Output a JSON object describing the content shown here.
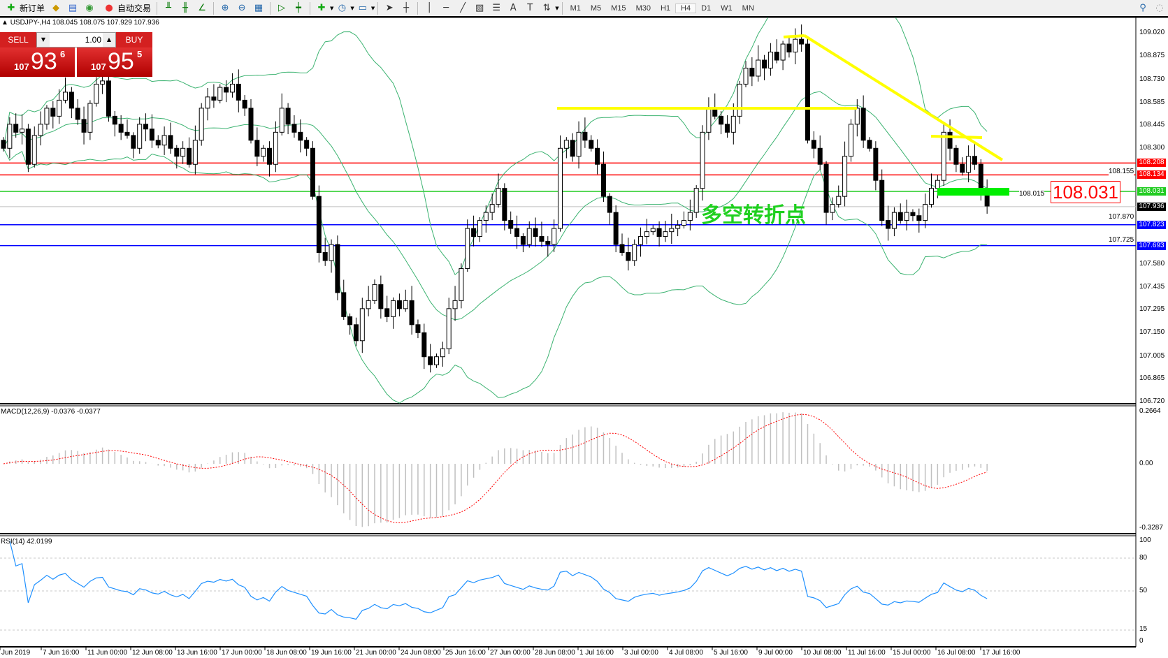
{
  "toolbar": {
    "new_order": "新订单",
    "auto_trading": "自动交易",
    "timeframes": [
      "M1",
      "M5",
      "M15",
      "M30",
      "H1",
      "H4",
      "D1",
      "W1",
      "MN"
    ],
    "active_timeframe": "H4"
  },
  "symbol_header": "USDJPY-,H4  108.045 108.075 107.929 107.936",
  "trade_panel": {
    "sell_label": "SELL",
    "buy_label": "BUY",
    "lot": "1.00",
    "sell_prefix": "107",
    "sell_big": "93",
    "sell_sup": "6",
    "buy_prefix": "107",
    "buy_big": "95",
    "buy_sup": "5",
    "color": "#d42020"
  },
  "price_axis": [
    "109.020",
    "108.875",
    "108.730",
    "108.585",
    "108.445",
    "108.300",
    "108.155",
    "108.015",
    "107.870",
    "107.725",
    "107.580",
    "107.435",
    "107.295",
    "107.150",
    "107.005",
    "106.865",
    "106.720"
  ],
  "hlines": [
    {
      "value": "108.208",
      "color": "#ff0000"
    },
    {
      "value": "108.134",
      "color": "#ff0000"
    },
    {
      "value": "108.031",
      "color": "#22cc22"
    },
    {
      "value": "107.936",
      "color": "#000000"
    },
    {
      "value": "107.823",
      "color": "#0000ff"
    },
    {
      "value": "107.693",
      "color": "#0000ff"
    }
  ],
  "annotation": "多空转折点",
  "big_price_label": "108.031",
  "macd": {
    "header": "MACD(12,26,9) -0.0376 -0.0377",
    "axis": [
      "0.2664",
      "0.00",
      "-0.3287"
    ]
  },
  "rsi": {
    "header": "RSI(14) 42.0199",
    "axis": [
      "100",
      "80",
      "50",
      "15",
      "0"
    ]
  },
  "time_axis": [
    "Jun 2019",
    "7 Jun 16:00",
    "11 Jun 00:00",
    "12 Jun 08:00",
    "13 Jun 16:00",
    "17 Jun 00:00",
    "18 Jun 08:00",
    "19 Jun 16:00",
    "21 Jun 00:00",
    "24 Jun 08:00",
    "25 Jun 16:00",
    "27 Jun 00:00",
    "28 Jun 08:00",
    "1 Jul 16:00",
    "3 Jul 00:00",
    "4 Jul 08:00",
    "5 Jul 16:00",
    "9 Jul 00:00",
    "10 Jul 08:00",
    "11 Jul 16:00",
    "15 Jul 00:00",
    "16 Jul 08:00",
    "17 Jul 16:00"
  ],
  "colors": {
    "bands": "#3cb371",
    "trendlines": "#ffff00",
    "macd_signal": "#ff0000",
    "macd_hist": "#c0c0c0",
    "rsi": "#1e90ff"
  },
  "chart_data": {
    "type": "candlestick",
    "symbol": "USDJPY-",
    "timeframe": "H4",
    "closes": [
      108.3,
      108.45,
      108.4,
      108.42,
      108.2,
      108.38,
      108.45,
      108.55,
      108.5,
      108.6,
      108.65,
      108.55,
      108.48,
      108.4,
      108.58,
      108.7,
      108.72,
      108.5,
      108.45,
      108.4,
      108.38,
      108.3,
      108.45,
      108.42,
      108.35,
      108.32,
      108.38,
      108.3,
      108.25,
      108.3,
      108.2,
      108.35,
      108.55,
      108.62,
      108.6,
      108.68,
      108.65,
      108.7,
      108.6,
      108.55,
      108.35,
      108.25,
      108.3,
      108.2,
      108.4,
      108.55,
      108.45,
      108.4,
      108.35,
      108.3,
      108.0,
      107.65,
      107.6,
      107.7,
      107.4,
      107.25,
      107.2,
      107.1,
      107.3,
      107.35,
      107.45,
      107.3,
      107.25,
      107.35,
      107.3,
      107.35,
      107.2,
      107.15,
      107.0,
      106.95,
      107.0,
      107.05,
      107.3,
      107.35,
      107.55,
      107.8,
      107.75,
      107.85,
      107.9,
      107.95,
      108.05,
      107.85,
      107.8,
      107.75,
      107.7,
      107.8,
      107.75,
      107.72,
      107.7,
      107.8,
      108.3,
      108.35,
      108.25,
      108.4,
      108.35,
      108.3,
      108.2,
      108.0,
      107.9,
      107.7,
      107.65,
      107.6,
      107.7,
      107.75,
      107.78,
      107.8,
      107.75,
      107.78,
      107.8,
      107.82,
      107.85,
      107.9,
      108.05,
      108.4,
      108.55,
      108.5,
      108.45,
      108.4,
      108.5,
      108.7,
      108.8,
      108.75,
      108.85,
      108.8,
      108.9,
      108.85,
      108.95,
      108.9,
      108.98,
      108.95,
      108.35,
      108.3,
      108.2,
      107.9,
      107.95,
      108.0,
      108.25,
      108.45,
      108.55,
      108.35,
      108.3,
      108.1,
      107.85,
      107.8,
      107.9,
      107.85,
      107.9,
      107.88,
      107.85,
      107.95,
      108.05,
      108.1,
      108.4,
      108.3,
      108.2,
      108.15,
      108.25,
      108.2,
      108.05,
      107.94
    ],
    "ylim": [
      106.72,
      109.02
    ]
  }
}
